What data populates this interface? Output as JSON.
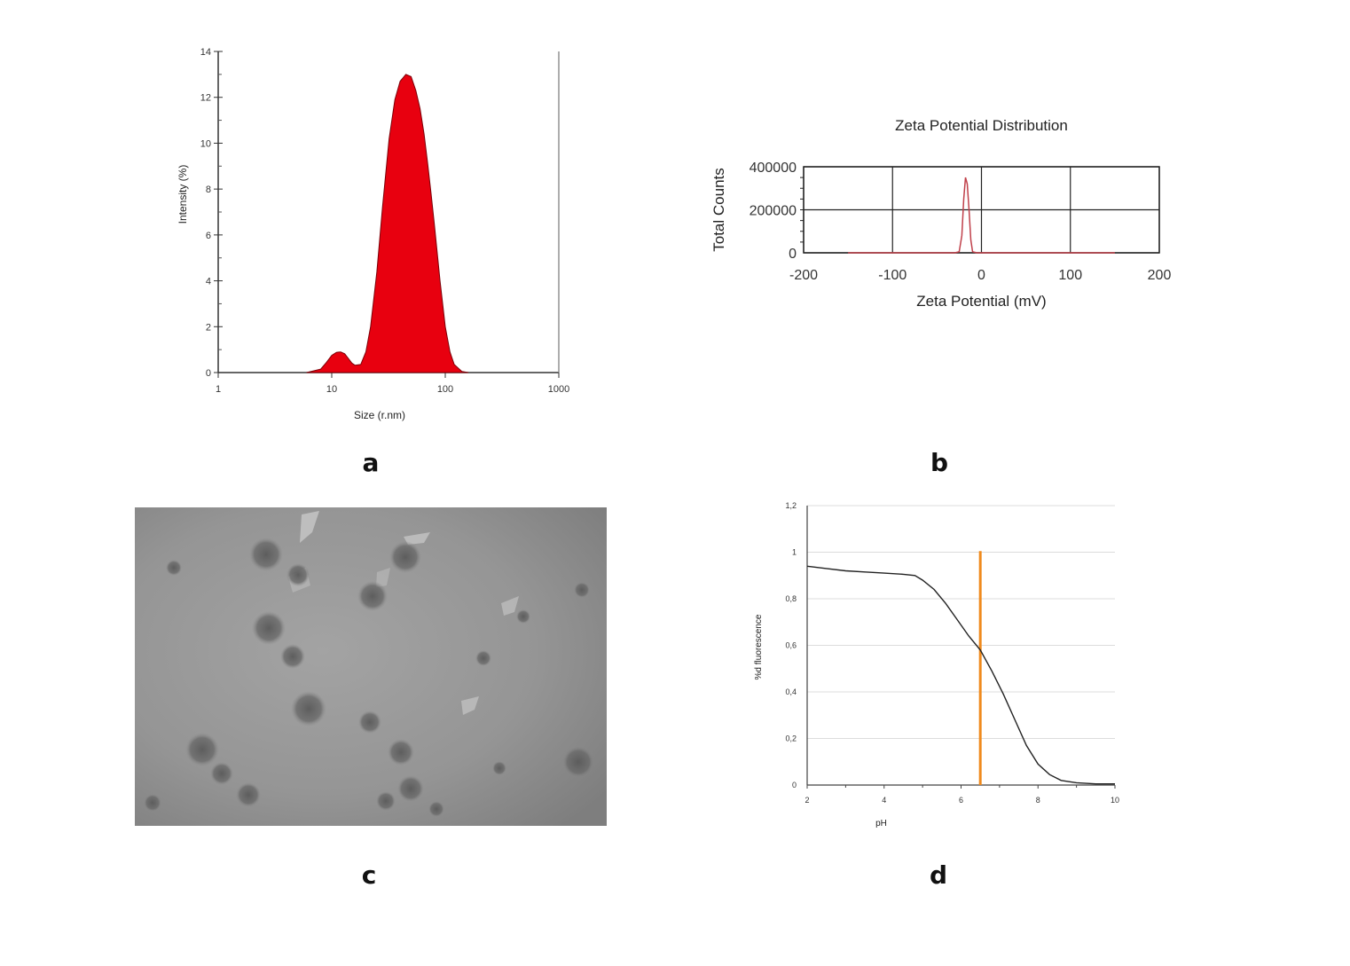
{
  "panels": {
    "a": "a",
    "b": "b",
    "c": "c",
    "d": "d"
  },
  "colors": {
    "fill_a": "#e8000f",
    "line_b": "#c0404a",
    "line_d": "#222222",
    "marker_d": "#f08a1c",
    "grid_d": "#dcdcdc"
  },
  "chart_data": [
    {
      "id": "a",
      "type": "area",
      "title": "",
      "xlabel": "Size (r.nm)",
      "ylabel": "Intensity (%)",
      "xscale": "log",
      "xlim": [
        1,
        1000
      ],
      "ylim": [
        0,
        14
      ],
      "xticks": [
        "1",
        "10",
        "100",
        "1000"
      ],
      "yticks": [
        "0",
        "2",
        "4",
        "6",
        "8",
        "10",
        "12",
        "14"
      ],
      "series": [
        {
          "x": [
            6,
            8,
            9,
            10,
            11,
            12,
            13,
            14,
            15,
            16,
            18,
            20,
            22,
            25,
            28,
            32,
            36,
            40,
            45,
            50,
            55,
            60,
            65,
            70,
            75,
            80,
            90,
            100,
            110,
            120,
            140,
            160
          ],
          "values": [
            0,
            0.15,
            0.45,
            0.75,
            0.88,
            0.9,
            0.82,
            0.62,
            0.42,
            0.32,
            0.35,
            0.9,
            2.0,
            4.4,
            7.2,
            10.2,
            11.9,
            12.7,
            13.0,
            12.9,
            12.3,
            11.5,
            10.4,
            9.1,
            7.8,
            6.5,
            4.0,
            2.0,
            0.9,
            0.35,
            0.05,
            0
          ]
        }
      ]
    },
    {
      "id": "b",
      "type": "line",
      "title": "Zeta Potential Distribution",
      "xlabel": "Zeta Potential (mV)",
      "ylabel": "Total Counts",
      "xlim": [
        -200,
        200
      ],
      "ylim": [
        0,
        400000
      ],
      "xticks": [
        "-200",
        "-100",
        "0",
        "100",
        "200"
      ],
      "yticks": [
        "0",
        "200000",
        "400000"
      ],
      "grid": true,
      "series": [
        {
          "x": [
            -150,
            -40,
            -30,
            -25,
            -22,
            -20,
            -18,
            -16,
            -14,
            -12,
            -10,
            -5,
            0,
            150
          ],
          "values": [
            0,
            0,
            0,
            5000,
            80000,
            250000,
            350000,
            320000,
            200000,
            60000,
            5000,
            0,
            0,
            0
          ]
        }
      ]
    },
    {
      "id": "d",
      "type": "line",
      "title": "",
      "xlabel": "pH",
      "ylabel": "%d fluorescence",
      "xlim": [
        2,
        10
      ],
      "ylim": [
        0,
        1.2
      ],
      "xticks": [
        "2",
        "4",
        "6",
        "8",
        "10"
      ],
      "yticks": [
        "0",
        "0,2",
        "0,4",
        "0,6",
        "0,8",
        "1",
        "1,2"
      ],
      "grid": true,
      "marker_x": 6.5,
      "series": [
        {
          "x": [
            2,
            2.5,
            3,
            3.5,
            4,
            4.5,
            4.8,
            5.0,
            5.3,
            5.6,
            5.9,
            6.2,
            6.5,
            6.8,
            7.1,
            7.4,
            7.7,
            8.0,
            8.3,
            8.6,
            9.0,
            9.5,
            10
          ],
          "values": [
            0.94,
            0.93,
            0.92,
            0.915,
            0.91,
            0.905,
            0.9,
            0.88,
            0.84,
            0.78,
            0.71,
            0.64,
            0.58,
            0.49,
            0.39,
            0.28,
            0.17,
            0.09,
            0.045,
            0.02,
            0.01,
            0.005,
            0.005
          ]
        }
      ]
    }
  ],
  "image_c": {
    "description_icon": "tem-micrograph"
  }
}
